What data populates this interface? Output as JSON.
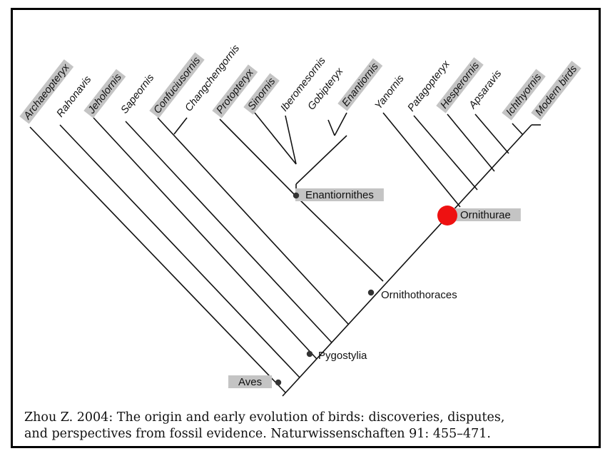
{
  "taxa": [
    {
      "name": "Archaeopteryx",
      "highlighted": true
    },
    {
      "name": "Rahonavis",
      "highlighted": false
    },
    {
      "name": "Jeholornis",
      "highlighted": true
    },
    {
      "name": "Sapeornis",
      "highlighted": false
    },
    {
      "name": "Confuciusornis",
      "highlighted": true
    },
    {
      "name": "Changchengornis",
      "highlighted": false
    },
    {
      "name": "Protopteryx",
      "highlighted": true
    },
    {
      "name": "Sinornis",
      "highlighted": true
    },
    {
      "name": "Iberomesornis",
      "highlighted": false
    },
    {
      "name": "Gobipteryx",
      "highlighted": false
    },
    {
      "name": "Enantiornis",
      "highlighted": true
    },
    {
      "name": "Yanornis",
      "highlighted": false
    },
    {
      "name": "Patagopteryx",
      "highlighted": false
    },
    {
      "name": "Hesperornis",
      "highlighted": true
    },
    {
      "name": "Apsaravis",
      "highlighted": false
    },
    {
      "name": "Ichthyornis",
      "highlighted": true
    },
    {
      "name": "Modern birds",
      "highlighted": true
    }
  ],
  "clades": [
    {
      "name": "Aves",
      "highlighted": true,
      "marker": "dot"
    },
    {
      "name": "Pygostylia",
      "highlighted": false,
      "marker": "dot"
    },
    {
      "name": "Ornithothoraces",
      "highlighted": false,
      "marker": "dot"
    },
    {
      "name": "Enantiornithes",
      "highlighted": true,
      "marker": "dot"
    },
    {
      "name": "Ornithurae",
      "highlighted": true,
      "marker": "large-red-dot"
    }
  ],
  "caption": {
    "line1": "Zhou Z. 2004: The origin and early evolution of birds: discoveries, disputes,",
    "line2": "and perspectives from fossil evidence. Naturwissenschaften 91: 455–471."
  },
  "colors": {
    "line": "#111111",
    "highlight": "#c4c4c4",
    "ornithurae_marker": "#ee1111",
    "node_dot": "#333333"
  }
}
